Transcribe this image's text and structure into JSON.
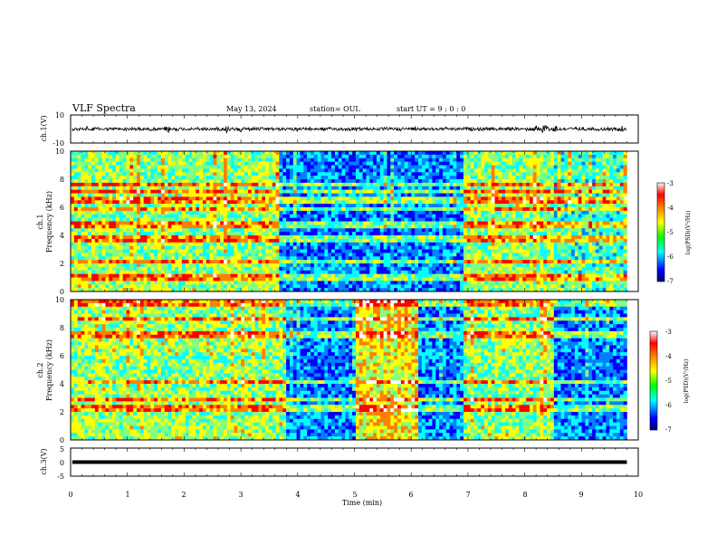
{
  "header": {
    "title": "VLF Spectra",
    "date": "May 13, 2024",
    "station": "station= OUL",
    "start": "start  UT =  9 : 0 : 0"
  },
  "chart_data": [
    {
      "type": "line",
      "name": "ch.1 waveform",
      "ylabel": "ch.1(V)",
      "xlim": [
        0,
        10
      ],
      "ylim": [
        -10,
        10
      ],
      "yticks": [
        "10",
        "-10"
      ],
      "trace_end_x": 9.8,
      "baseline_v": 0,
      "bursts": [
        {
          "x": 0.3,
          "amp": 3
        },
        {
          "x": 1.25,
          "amp": 3
        },
        {
          "x": 1.7,
          "amp": 5
        },
        {
          "x": 2.75,
          "amp": 4
        },
        {
          "x": 3.0,
          "amp": 3
        },
        {
          "x": 4.0,
          "amp": 3
        },
        {
          "x": 6.05,
          "amp": 3
        },
        {
          "x": 8.2,
          "amp": 5
        },
        {
          "x": 8.35,
          "amp": 7
        },
        {
          "x": 8.55,
          "amp": 5
        },
        {
          "x": 9.7,
          "amp": 4
        }
      ]
    },
    {
      "type": "heatmap",
      "name": "ch.1 spectrogram",
      "ylabel_line1": "ch.1",
      "ylabel_line2": "Frequency (kHz)",
      "xlim": [
        0,
        10
      ],
      "ylim": [
        0,
        10
      ],
      "yticks": [
        "0",
        "2",
        "4",
        "6",
        "8",
        "10"
      ],
      "data_end_x": 9.8,
      "segments": [
        {
          "x0": 0.0,
          "x1": 3.7,
          "level": "moderate"
        },
        {
          "x0": 3.7,
          "x1": 6.9,
          "level": "low"
        },
        {
          "x0": 6.9,
          "x1": 8.5,
          "level": "moderate"
        },
        {
          "x0": 8.5,
          "x1": 9.8,
          "level": "moderate-low"
        }
      ],
      "colorbar": {
        "ticks": [
          "-3",
          "-4",
          "-5",
          "-6",
          "-7"
        ],
        "label": "log(PSD)(V²/Hz)",
        "range": [
          -7,
          -3
        ]
      }
    },
    {
      "type": "heatmap",
      "name": "ch.2 spectrogram",
      "ylabel_line1": "ch.2",
      "ylabel_line2": "Frequency (kHz)",
      "xlim": [
        0,
        10
      ],
      "ylim": [
        0,
        10
      ],
      "yticks": [
        "0",
        "2",
        "4",
        "6",
        "8",
        "10"
      ],
      "data_end_x": 9.8,
      "segments": [
        {
          "x0": 0.0,
          "x1": 3.8,
          "level": "moderate"
        },
        {
          "x0": 3.8,
          "x1": 5.0,
          "level": "low"
        },
        {
          "x0": 5.0,
          "x1": 6.1,
          "level": "high"
        },
        {
          "x0": 6.1,
          "x1": 6.9,
          "level": "low"
        },
        {
          "x0": 6.9,
          "x1": 8.5,
          "level": "moderate"
        },
        {
          "x0": 8.5,
          "x1": 9.8,
          "level": "low"
        }
      ],
      "colorbar": {
        "ticks": [
          "-3",
          "-4",
          "-5",
          "-6",
          "-7"
        ],
        "label": "log(PSD)(V²/Hz)",
        "range": [
          -7,
          -3
        ]
      }
    },
    {
      "type": "line",
      "name": "ch.3 waveform",
      "ylabel": "ch.3(V)",
      "xlim": [
        0,
        10
      ],
      "ylim": [
        -5,
        5
      ],
      "yticks": [
        "5",
        "0",
        "-5"
      ],
      "trace_end_x": 9.8,
      "level_v": 0
    }
  ],
  "xaxis": {
    "label": "Time (min)",
    "ticks": [
      "0",
      "1",
      "2",
      "3",
      "4",
      "5",
      "6",
      "7",
      "8",
      "9",
      "10"
    ]
  },
  "colors": {
    "scale": [
      "#00007f",
      "#0000ff",
      "#0080ff",
      "#00ffff",
      "#80ff80",
      "#ffff00",
      "#ff8000",
      "#ff0000",
      "#ffffff"
    ]
  }
}
